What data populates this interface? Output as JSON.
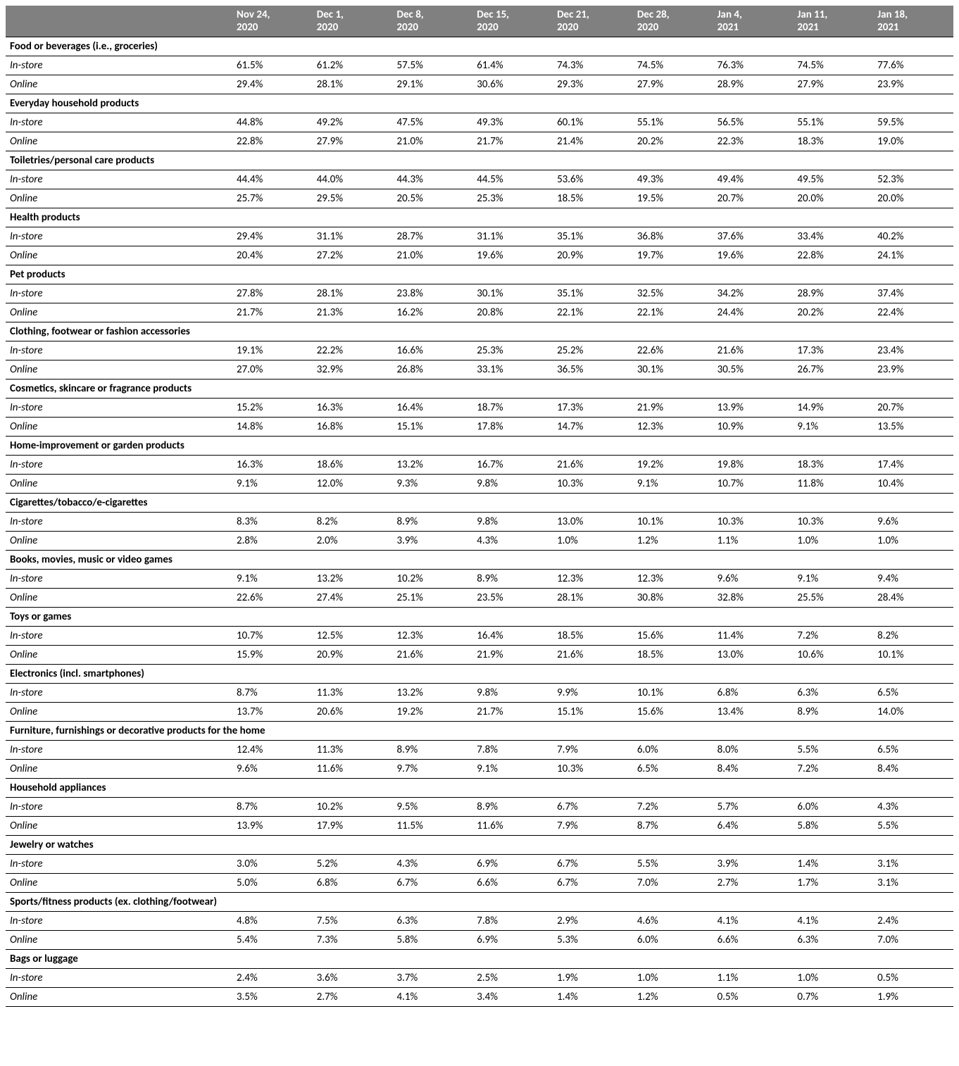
{
  "table": {
    "header_bg": "#808080",
    "header_fg": "#ffffff",
    "border_color": "#000000",
    "font_family": "Calibri",
    "columns": [
      {
        "line1": "",
        "line2": ""
      },
      {
        "line1": "Nov 24,",
        "line2": "2020"
      },
      {
        "line1": "Dec 1,",
        "line2": "2020"
      },
      {
        "line1": "Dec 8,",
        "line2": "2020"
      },
      {
        "line1": "Dec 15,",
        "line2": "2020"
      },
      {
        "line1": "Dec 21,",
        "line2": "2020"
      },
      {
        "line1": "Dec 28,",
        "line2": "2020"
      },
      {
        "line1": "Jan 4,",
        "line2": "2021"
      },
      {
        "line1": "Jan 11,",
        "line2": "2021"
      },
      {
        "line1": "Jan 18,",
        "line2": "2021"
      }
    ],
    "categories": [
      {
        "name": "Food or beverages (i.e., groceries)",
        "rows": [
          {
            "label": "In-store",
            "values": [
              "61.5%",
              "61.2%",
              "57.5%",
              "61.4%",
              "74.3%",
              "74.5%",
              "76.3%",
              "74.5%",
              "77.6%"
            ]
          },
          {
            "label": "Online",
            "values": [
              "29.4%",
              "28.1%",
              "29.1%",
              "30.6%",
              "29.3%",
              "27.9%",
              "28.9%",
              "27.9%",
              "23.9%"
            ]
          }
        ]
      },
      {
        "name": "Everyday household products",
        "rows": [
          {
            "label": "In-store",
            "values": [
              "44.8%",
              "49.2%",
              "47.5%",
              "49.3%",
              "60.1%",
              "55.1%",
              "56.5%",
              "55.1%",
              "59.5%"
            ]
          },
          {
            "label": "Online",
            "values": [
              "22.8%",
              "27.9%",
              "21.0%",
              "21.7%",
              "21.4%",
              "20.2%",
              "22.3%",
              "18.3%",
              "19.0%"
            ]
          }
        ]
      },
      {
        "name": "Toiletries/personal care products",
        "rows": [
          {
            "label": "In-store",
            "values": [
              "44.4%",
              "44.0%",
              "44.3%",
              "44.5%",
              "53.6%",
              "49.3%",
              "49.4%",
              "49.5%",
              "52.3%"
            ]
          },
          {
            "label": "Online",
            "values": [
              "25.7%",
              "29.5%",
              "20.5%",
              "25.3%",
              "18.5%",
              "19.5%",
              "20.7%",
              "20.0%",
              "20.0%"
            ]
          }
        ]
      },
      {
        "name": "Health products",
        "rows": [
          {
            "label": "In-store",
            "values": [
              "29.4%",
              "31.1%",
              "28.7%",
              "31.1%",
              "35.1%",
              "36.8%",
              "37.6%",
              "33.4%",
              "40.2%"
            ]
          },
          {
            "label": "Online",
            "values": [
              "20.4%",
              "27.2%",
              "21.0%",
              "19.6%",
              "20.9%",
              "19.7%",
              "19.6%",
              "22.8%",
              "24.1%"
            ]
          }
        ]
      },
      {
        "name": "Pet products",
        "rows": [
          {
            "label": "In-store",
            "values": [
              "27.8%",
              "28.1%",
              "23.8%",
              "30.1%",
              "35.1%",
              "32.5%",
              "34.2%",
              "28.9%",
              "37.4%"
            ]
          },
          {
            "label": "Online",
            "values": [
              "21.7%",
              "21.3%",
              "16.2%",
              "20.8%",
              "22.1%",
              "22.1%",
              "24.4%",
              "20.2%",
              "22.4%"
            ]
          }
        ]
      },
      {
        "name": "Clothing, footwear or fashion accessories",
        "rows": [
          {
            "label": "In-store",
            "values": [
              "19.1%",
              "22.2%",
              "16.6%",
              "25.3%",
              "25.2%",
              "22.6%",
              "21.6%",
              "17.3%",
              "23.4%"
            ]
          },
          {
            "label": "Online",
            "values": [
              "27.0%",
              "32.9%",
              "26.8%",
              "33.1%",
              "36.5%",
              "30.1%",
              "30.5%",
              "26.7%",
              "23.9%"
            ]
          }
        ]
      },
      {
        "name": "Cosmetics, skincare or fragrance products",
        "rows": [
          {
            "label": "In-store",
            "values": [
              "15.2%",
              "16.3%",
              "16.4%",
              "18.7%",
              "17.3%",
              "21.9%",
              "13.9%",
              "14.9%",
              "20.7%"
            ]
          },
          {
            "label": "Online",
            "values": [
              "14.8%",
              "16.8%",
              "15.1%",
              "17.8%",
              "14.7%",
              "12.3%",
              "10.9%",
              "9.1%",
              "13.5%"
            ]
          }
        ]
      },
      {
        "name": "Home-improvement or garden products",
        "rows": [
          {
            "label": "In-store",
            "values": [
              "16.3%",
              "18.6%",
              "13.2%",
              "16.7%",
              "21.6%",
              "19.2%",
              "19.8%",
              "18.3%",
              "17.4%"
            ]
          },
          {
            "label": "Online",
            "values": [
              "9.1%",
              "12.0%",
              "9.3%",
              "9.8%",
              "10.3%",
              "9.1%",
              "10.7%",
              "11.8%",
              "10.4%"
            ]
          }
        ]
      },
      {
        "name": "Cigarettes/tobacco/e-cigarettes",
        "rows": [
          {
            "label": "In-store",
            "values": [
              "8.3%",
              "8.2%",
              "8.9%",
              "9.8%",
              "13.0%",
              "10.1%",
              "10.3%",
              "10.3%",
              "9.6%"
            ]
          },
          {
            "label": "Online",
            "values": [
              "2.8%",
              "2.0%",
              "3.9%",
              "4.3%",
              "1.0%",
              "1.2%",
              "1.1%",
              "1.0%",
              "1.0%"
            ]
          }
        ]
      },
      {
        "name": "Books, movies, music or video games",
        "rows": [
          {
            "label": "In-store",
            "values": [
              "9.1%",
              "13.2%",
              "10.2%",
              "8.9%",
              "12.3%",
              "12.3%",
              "9.6%",
              "9.1%",
              "9.4%"
            ]
          },
          {
            "label": "Online",
            "values": [
              "22.6%",
              "27.4%",
              "25.1%",
              "23.5%",
              "28.1%",
              "30.8%",
              "32.8%",
              "25.5%",
              "28.4%"
            ]
          }
        ]
      },
      {
        "name": "Toys or games",
        "rows": [
          {
            "label": "In-store",
            "values": [
              "10.7%",
              "12.5%",
              "12.3%",
              "16.4%",
              "18.5%",
              "15.6%",
              "11.4%",
              "7.2%",
              "8.2%"
            ]
          },
          {
            "label": "Online",
            "values": [
              "15.9%",
              "20.9%",
              "21.6%",
              "21.9%",
              "21.6%",
              "18.5%",
              "13.0%",
              "10.6%",
              "10.1%"
            ]
          }
        ]
      },
      {
        "name": "Electronics (incl. smartphones)",
        "rows": [
          {
            "label": "In-store",
            "values": [
              "8.7%",
              "11.3%",
              "13.2%",
              "9.8%",
              "9.9%",
              "10.1%",
              "6.8%",
              "6.3%",
              "6.5%"
            ]
          },
          {
            "label": "Online",
            "values": [
              "13.7%",
              "20.6%",
              "19.2%",
              "21.7%",
              "15.1%",
              "15.6%",
              "13.4%",
              "8.9%",
              "14.0%"
            ]
          }
        ]
      },
      {
        "name": "Furniture, furnishings or decorative products for the home",
        "rows": [
          {
            "label": "In-store",
            "values": [
              "12.4%",
              "11.3%",
              "8.9%",
              "7.8%",
              "7.9%",
              "6.0%",
              "8.0%",
              "5.5%",
              "6.5%"
            ]
          },
          {
            "label": "Online",
            "values": [
              "9.6%",
              "11.6%",
              "9.7%",
              "9.1%",
              "10.3%",
              "6.5%",
              "8.4%",
              "7.2%",
              "8.4%"
            ]
          }
        ]
      },
      {
        "name": "Household appliances",
        "rows": [
          {
            "label": "In-store",
            "values": [
              "8.7%",
              "10.2%",
              "9.5%",
              "8.9%",
              "6.7%",
              "7.2%",
              "5.7%",
              "6.0%",
              "4.3%"
            ]
          },
          {
            "label": "Online",
            "values": [
              "13.9%",
              "17.9%",
              "11.5%",
              "11.6%",
              "7.9%",
              "8.7%",
              "6.4%",
              "5.8%",
              "5.5%"
            ]
          }
        ]
      },
      {
        "name": "Jewelry or watches",
        "rows": [
          {
            "label": "In-store",
            "values": [
              "3.0%",
              "5.2%",
              "4.3%",
              "6.9%",
              "6.7%",
              "5.5%",
              "3.9%",
              "1.4%",
              "3.1%"
            ]
          },
          {
            "label": "Online",
            "values": [
              "5.0%",
              "6.8%",
              "6.7%",
              "6.6%",
              "6.7%",
              "7.0%",
              "2.7%",
              "1.7%",
              "3.1%"
            ]
          }
        ]
      },
      {
        "name": "Sports/fitness products (ex. clothing/footwear)",
        "rows": [
          {
            "label": "In-store",
            "values": [
              "4.8%",
              "7.5%",
              "6.3%",
              "7.8%",
              "2.9%",
              "4.6%",
              "4.1%",
              "4.1%",
              "2.4%"
            ]
          },
          {
            "label": "Online",
            "values": [
              "5.4%",
              "7.3%",
              "5.8%",
              "6.9%",
              "5.3%",
              "6.0%",
              "6.6%",
              "6.3%",
              "7.0%"
            ]
          }
        ]
      },
      {
        "name": "Bags or luggage",
        "rows": [
          {
            "label": "In-store",
            "values": [
              "2.4%",
              "3.6%",
              "3.7%",
              "2.5%",
              "1.9%",
              "1.0%",
              "1.1%",
              "1.0%",
              "0.5%"
            ]
          },
          {
            "label": "Online",
            "values": [
              "3.5%",
              "2.7%",
              "4.1%",
              "3.4%",
              "1.4%",
              "1.2%",
              "0.5%",
              "0.7%",
              "1.9%"
            ]
          }
        ]
      }
    ]
  }
}
